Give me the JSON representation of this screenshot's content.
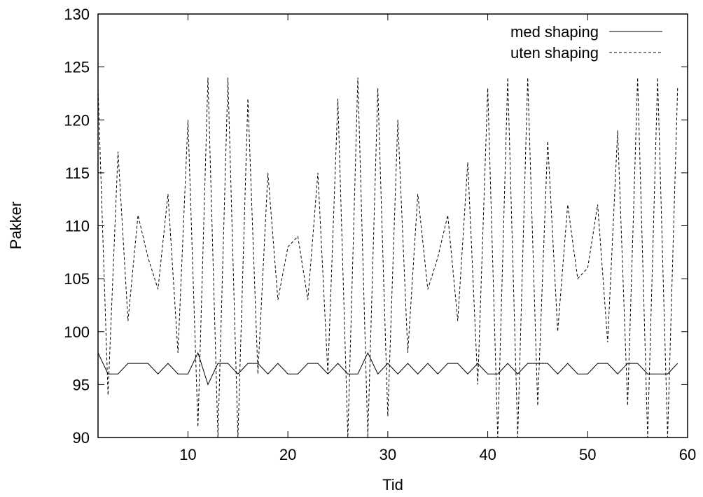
{
  "chart_data": {
    "type": "line",
    "title": "",
    "xlabel": "Tid",
    "ylabel": "Pakker",
    "xlim": [
      1,
      60
    ],
    "ylim": [
      90,
      130
    ],
    "xticks": [
      10,
      20,
      30,
      40,
      50,
      60
    ],
    "yticks": [
      90,
      95,
      100,
      105,
      110,
      115,
      120,
      125,
      130
    ],
    "grid": false,
    "legend_position": "top-right",
    "x": [
      1,
      2,
      3,
      4,
      5,
      6,
      7,
      8,
      9,
      10,
      11,
      12,
      13,
      14,
      15,
      16,
      17,
      18,
      19,
      20,
      21,
      22,
      23,
      24,
      25,
      26,
      27,
      28,
      29,
      30,
      31,
      32,
      33,
      34,
      35,
      36,
      37,
      38,
      39,
      40,
      41,
      42,
      43,
      44,
      45,
      46,
      47,
      48,
      49,
      50,
      51,
      52,
      53,
      54,
      55,
      56,
      57,
      58,
      59
    ],
    "series": [
      {
        "name": "med shaping",
        "style": "solid",
        "color": "#000000",
        "values": [
          98,
          96,
          96,
          97,
          97,
          97,
          96,
          97,
          96,
          96,
          98,
          95,
          97,
          97,
          96,
          97,
          97,
          96,
          97,
          96,
          96,
          97,
          97,
          96,
          97,
          96,
          96,
          98,
          96,
          97,
          96,
          97,
          96,
          97,
          96,
          97,
          97,
          96,
          97,
          96,
          96,
          97,
          96,
          97,
          97,
          97,
          96,
          97,
          96,
          96,
          97,
          97,
          96,
          97,
          97,
          96,
          96,
          96,
          97
        ]
      },
      {
        "name": "uten shaping",
        "style": "dashed",
        "color": "#000000",
        "values": [
          123,
          94,
          117,
          101,
          111,
          107,
          104,
          113,
          98,
          120,
          91,
          124,
          90,
          124,
          90,
          122,
          96,
          115,
          103,
          108,
          109,
          103,
          115,
          96,
          122,
          90,
          124,
          90,
          123,
          92,
          120,
          98,
          113,
          104,
          107,
          111,
          101,
          116,
          95,
          123,
          90,
          124,
          90,
          124,
          93,
          118,
          100,
          112,
          105,
          106,
          112,
          99,
          119,
          93,
          124,
          90,
          124,
          90,
          123
        ]
      }
    ]
  }
}
